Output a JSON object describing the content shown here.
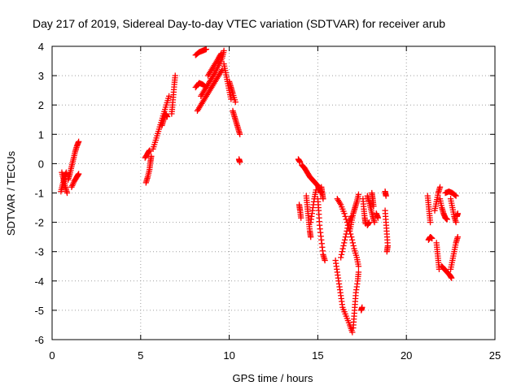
{
  "chart_data": {
    "type": "scatter",
    "title": "Day 217 of 2019, Sidereal Day-to-day VTEC variation (SDTVAR) for receiver arub",
    "xlabel": "GPS time / hours",
    "ylabel": "SDTVAR / TECUs",
    "xlim": [
      0,
      25
    ],
    "ylim": [
      -6,
      4
    ],
    "xticks": [
      0,
      5,
      10,
      15,
      20,
      25
    ],
    "yticks": [
      -6,
      -5,
      -4,
      -3,
      -2,
      -1,
      0,
      1,
      2,
      3,
      4
    ],
    "grid": true,
    "marker": "+",
    "series_color": "#ff0000",
    "tracks": [
      [
        [
          0.55,
          -0.3
        ],
        [
          0.65,
          -0.55
        ],
        [
          0.75,
          -0.8
        ],
        [
          0.85,
          -1.0
        ]
      ],
      [
        [
          0.5,
          -0.95
        ],
        [
          0.6,
          -0.7
        ],
        [
          0.7,
          -0.45
        ],
        [
          0.8,
          -0.3
        ]
      ],
      [
        [
          0.9,
          -0.55
        ],
        [
          1.0,
          -0.35
        ],
        [
          1.1,
          -0.1
        ],
        [
          1.2,
          0.15
        ],
        [
          1.3,
          0.4
        ],
        [
          1.4,
          0.6
        ],
        [
          1.5,
          0.75
        ]
      ],
      [
        [
          1.1,
          -0.8
        ],
        [
          1.25,
          -0.6
        ],
        [
          1.4,
          -0.45
        ],
        [
          1.5,
          -0.35
        ]
      ],
      [
        [
          5.3,
          -0.65
        ],
        [
          5.4,
          -0.45
        ],
        [
          5.5,
          -0.2
        ],
        [
          5.55,
          0.05
        ],
        [
          5.6,
          0.25
        ]
      ],
      [
        [
          5.25,
          0.2
        ],
        [
          5.4,
          0.35
        ],
        [
          5.5,
          0.45
        ]
      ],
      [
        [
          5.7,
          0.5
        ],
        [
          5.85,
          0.8
        ],
        [
          6.0,
          1.1
        ],
        [
          6.15,
          1.4
        ],
        [
          6.3,
          1.7
        ],
        [
          6.45,
          2.0
        ],
        [
          6.6,
          2.3
        ]
      ],
      [
        [
          6.2,
          1.3
        ],
        [
          6.3,
          1.5
        ],
        [
          6.4,
          1.7
        ],
        [
          6.5,
          1.6
        ]
      ],
      [
        [
          6.75,
          1.7
        ],
        [
          6.8,
          2.0
        ],
        [
          6.85,
          2.35
        ],
        [
          6.9,
          2.7
        ],
        [
          6.95,
          3.0
        ]
      ],
      [
        [
          8.1,
          3.7
        ],
        [
          8.3,
          3.8
        ],
        [
          8.5,
          3.85
        ],
        [
          8.7,
          3.9
        ]
      ],
      [
        [
          8.1,
          2.6
        ],
        [
          8.3,
          2.75
        ],
        [
          8.5,
          2.7
        ],
        [
          8.7,
          2.6
        ]
      ],
      [
        [
          8.2,
          1.8
        ],
        [
          8.4,
          2.0
        ],
        [
          8.6,
          2.2
        ],
        [
          8.8,
          2.4
        ],
        [
          9.0,
          2.6
        ],
        [
          9.2,
          2.8
        ],
        [
          9.4,
          3.0
        ],
        [
          9.6,
          3.2
        ]
      ],
      [
        [
          8.4,
          2.3
        ],
        [
          8.6,
          2.5
        ],
        [
          8.8,
          2.7
        ],
        [
          9.0,
          2.9
        ],
        [
          9.2,
          3.1
        ],
        [
          9.4,
          3.35
        ],
        [
          9.6,
          3.6
        ],
        [
          9.7,
          3.85
        ]
      ],
      [
        [
          8.8,
          3.0
        ],
        [
          9.0,
          3.2
        ],
        [
          9.2,
          3.4
        ],
        [
          9.4,
          3.6
        ],
        [
          9.55,
          3.75
        ]
      ],
      [
        [
          9.7,
          3.4
        ],
        [
          9.8,
          3.1
        ],
        [
          9.9,
          2.8
        ],
        [
          10.0,
          2.5
        ],
        [
          10.1,
          2.2
        ]
      ],
      [
        [
          10.0,
          2.8
        ],
        [
          10.1,
          2.6
        ],
        [
          10.2,
          2.4
        ],
        [
          10.35,
          2.1
        ]
      ],
      [
        [
          10.2,
          1.8
        ],
        [
          10.3,
          1.6
        ],
        [
          10.4,
          1.4
        ],
        [
          10.5,
          1.2
        ],
        [
          10.6,
          1.0
        ]
      ],
      [
        [
          10.55,
          0.15
        ],
        [
          10.6,
          0.05
        ]
      ],
      [
        [
          13.9,
          0.15
        ],
        [
          14.0,
          0.05
        ]
      ],
      [
        [
          14.1,
          -0.05
        ],
        [
          14.25,
          -0.15
        ],
        [
          14.4,
          -0.3
        ],
        [
          14.55,
          -0.45
        ],
        [
          14.7,
          -0.55
        ],
        [
          14.85,
          -0.65
        ],
        [
          15.0,
          -0.75
        ],
        [
          15.1,
          -0.9
        ],
        [
          15.2,
          -1.0
        ]
      ],
      [
        [
          13.95,
          -1.4
        ],
        [
          14.0,
          -1.6
        ],
        [
          14.05,
          -1.85
        ]
      ],
      [
        [
          14.35,
          -1.1
        ],
        [
          14.4,
          -1.4
        ],
        [
          14.45,
          -1.7
        ],
        [
          14.5,
          -2.0
        ],
        [
          14.55,
          -2.3
        ],
        [
          14.6,
          -2.5
        ]
      ],
      [
        [
          14.6,
          -2.0
        ],
        [
          14.7,
          -1.6
        ],
        [
          14.8,
          -1.2
        ],
        [
          14.9,
          -0.9
        ]
      ],
      [
        [
          15.0,
          -1.2
        ],
        [
          15.05,
          -1.6
        ],
        [
          15.1,
          -2.1
        ],
        [
          15.2,
          -2.6
        ],
        [
          15.3,
          -3.1
        ],
        [
          15.4,
          -3.3
        ]
      ],
      [
        [
          15.2,
          -0.8
        ],
        [
          15.25,
          -1.0
        ],
        [
          15.3,
          -1.2
        ]
      ],
      [
        [
          16.1,
          -1.2
        ],
        [
          16.3,
          -1.4
        ],
        [
          16.5,
          -1.7
        ],
        [
          16.7,
          -2.1
        ],
        [
          16.9,
          -2.5
        ],
        [
          17.05,
          -2.9
        ],
        [
          17.2,
          -3.2
        ],
        [
          17.3,
          -3.5
        ]
      ],
      [
        [
          16.0,
          -3.3
        ],
        [
          16.1,
          -3.7
        ],
        [
          16.2,
          -4.1
        ],
        [
          16.3,
          -4.5
        ],
        [
          16.4,
          -4.9
        ],
        [
          16.6,
          -5.2
        ],
        [
          16.8,
          -5.5
        ],
        [
          16.95,
          -5.75
        ]
      ],
      [
        [
          16.3,
          -3.2
        ],
        [
          16.45,
          -2.8
        ],
        [
          16.6,
          -2.4
        ],
        [
          16.75,
          -2.0
        ],
        [
          16.9,
          -1.8
        ]
      ],
      [
        [
          17.0,
          -5.6
        ],
        [
          17.05,
          -5.2
        ],
        [
          17.1,
          -4.8
        ],
        [
          17.15,
          -4.4
        ],
        [
          17.25,
          -4.0
        ],
        [
          17.3,
          -3.7
        ]
      ],
      [
        [
          16.8,
          -2.3
        ],
        [
          16.9,
          -2.0
        ],
        [
          17.0,
          -1.7
        ],
        [
          17.1,
          -1.5
        ],
        [
          17.2,
          -1.3
        ],
        [
          17.3,
          -1.05
        ]
      ],
      [
        [
          17.55,
          -1.2
        ],
        [
          17.6,
          -1.55
        ],
        [
          17.65,
          -1.85
        ],
        [
          17.7,
          -2.05
        ]
      ],
      [
        [
          17.45,
          -5.0
        ],
        [
          17.5,
          -4.9
        ]
      ],
      [
        [
          17.8,
          -1.1
        ],
        [
          17.9,
          -1.3
        ],
        [
          18.0,
          -1.55
        ],
        [
          18.1,
          -1.8
        ],
        [
          18.2,
          -2.0
        ]
      ],
      [
        [
          17.8,
          -2.1
        ],
        [
          17.9,
          -2.0
        ]
      ],
      [
        [
          18.05,
          -1.0
        ],
        [
          18.1,
          -1.2
        ],
        [
          18.15,
          -1.45
        ]
      ],
      [
        [
          18.3,
          -1.7
        ],
        [
          18.4,
          -1.85
        ]
      ],
      [
        [
          18.8,
          -0.95
        ],
        [
          18.85,
          -1.1
        ]
      ],
      [
        [
          18.8,
          -1.6
        ],
        [
          18.85,
          -2.0
        ],
        [
          18.9,
          -2.4
        ],
        [
          18.95,
          -2.8
        ],
        [
          18.9,
          -3.0
        ]
      ],
      [
        [
          21.2,
          -1.1
        ],
        [
          21.25,
          -1.4
        ],
        [
          21.3,
          -1.7
        ],
        [
          21.35,
          -2.0
        ]
      ],
      [
        [
          21.25,
          -2.6
        ],
        [
          21.35,
          -2.5
        ],
        [
          21.45,
          -2.55
        ]
      ],
      [
        [
          21.6,
          -1.6
        ],
        [
          21.7,
          -1.3
        ],
        [
          21.8,
          -1.0
        ],
        [
          21.9,
          -0.8
        ]
      ],
      [
        [
          21.7,
          -2.7
        ],
        [
          21.75,
          -3.0
        ],
        [
          21.8,
          -3.3
        ],
        [
          21.85,
          -3.6
        ]
      ],
      [
        [
          21.9,
          -1.2
        ],
        [
          22.0,
          -1.5
        ],
        [
          22.1,
          -1.7
        ],
        [
          22.2,
          -1.85
        ],
        [
          22.3,
          -1.9
        ]
      ],
      [
        [
          22.0,
          -3.5
        ],
        [
          22.15,
          -3.6
        ],
        [
          22.3,
          -3.7
        ],
        [
          22.45,
          -3.8
        ],
        [
          22.55,
          -3.9
        ]
      ],
      [
        [
          22.2,
          -1.0
        ],
        [
          22.4,
          -0.95
        ],
        [
          22.6,
          -1.0
        ],
        [
          22.8,
          -1.1
        ]
      ],
      [
        [
          22.5,
          -3.6
        ],
        [
          22.6,
          -3.3
        ],
        [
          22.7,
          -3.0
        ],
        [
          22.8,
          -2.7
        ],
        [
          22.9,
          -2.5
        ]
      ],
      [
        [
          22.5,
          -1.2
        ],
        [
          22.6,
          -1.5
        ],
        [
          22.7,
          -1.8
        ],
        [
          22.8,
          -2.0
        ]
      ],
      [
        [
          22.85,
          -1.8
        ],
        [
          22.9,
          -1.7
        ]
      ]
    ]
  }
}
